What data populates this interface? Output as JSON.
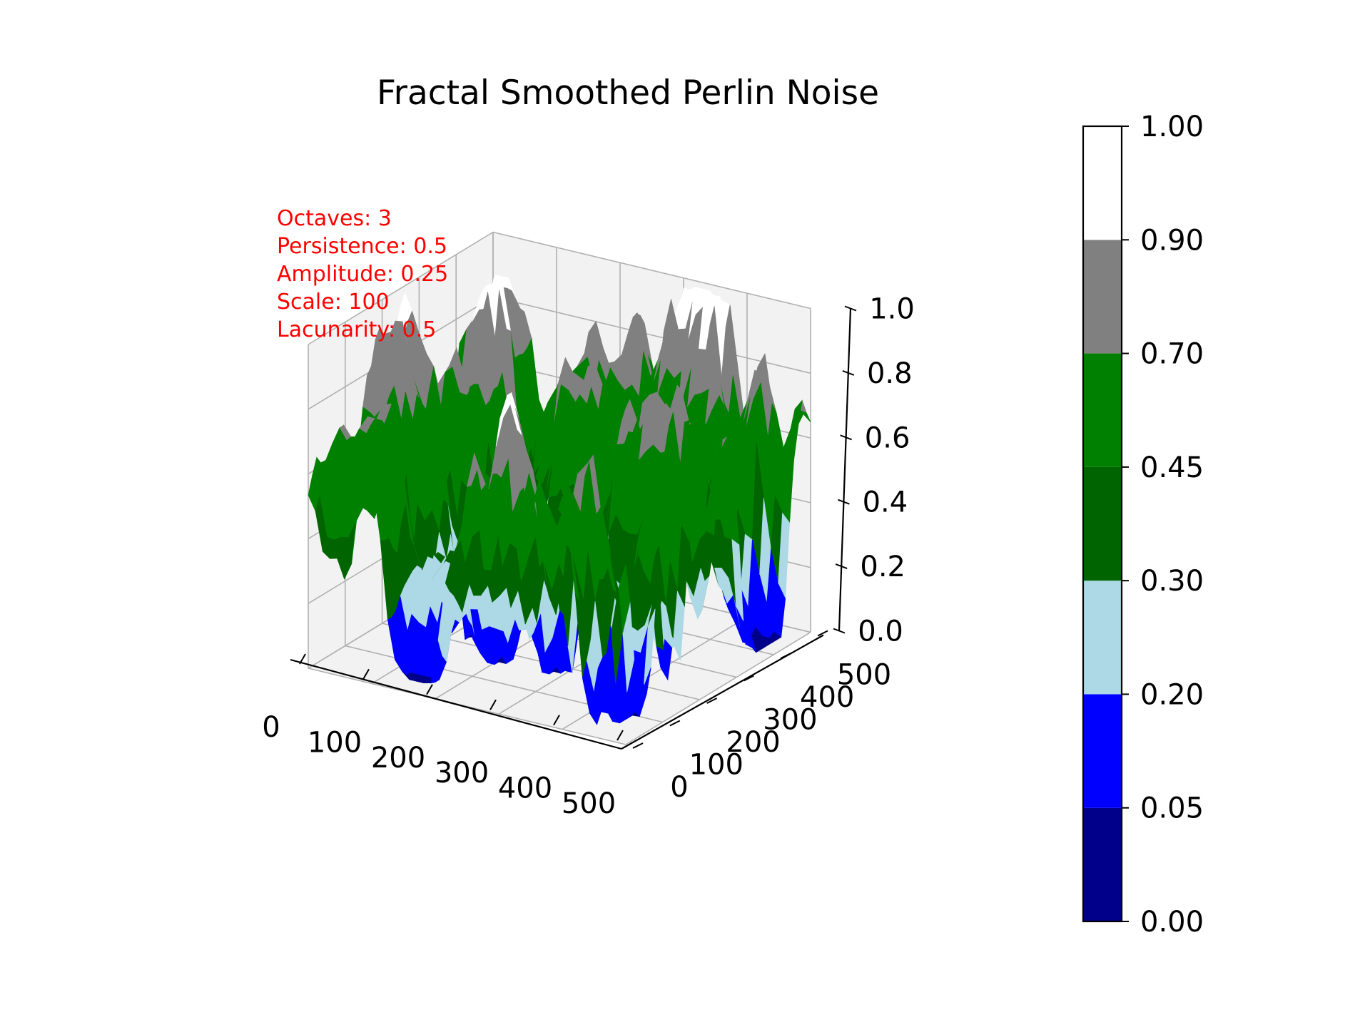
{
  "chart_data": {
    "type": "surface3d",
    "title": "Fractal Smoothed Perlin Noise",
    "annotation_lines": [
      "Octaves: 3",
      "Persistence: 0.5",
      "Amplitude: 0.25",
      "Scale: 100",
      "Lacunarity: 0.5"
    ],
    "annotation_color": "#ff0000",
    "x_ticks": [
      "0",
      "100",
      "200",
      "300",
      "400",
      "500"
    ],
    "y_ticks": [
      "0",
      "100",
      "200",
      "300",
      "400",
      "500"
    ],
    "z_ticks": [
      "0.0",
      "0.2",
      "0.4",
      "0.6",
      "0.8",
      "1.0"
    ],
    "xlim": [
      0,
      500
    ],
    "ylim": [
      0,
      500
    ],
    "zlim": [
      0,
      1
    ],
    "grid": true,
    "colorbar": {
      "boundaries": [
        0.0,
        0.05,
        0.2,
        0.3,
        0.45,
        0.7,
        0.9,
        1.0
      ],
      "tick_labels": [
        "0.00",
        "0.05",
        "0.20",
        "0.30",
        "0.45",
        "0.70",
        "0.90",
        "1.00"
      ],
      "colors": [
        "#00008b",
        "#0000ff",
        "#add8e6",
        "#006400",
        "#008000",
        "#808080",
        "#ffffff"
      ]
    }
  }
}
